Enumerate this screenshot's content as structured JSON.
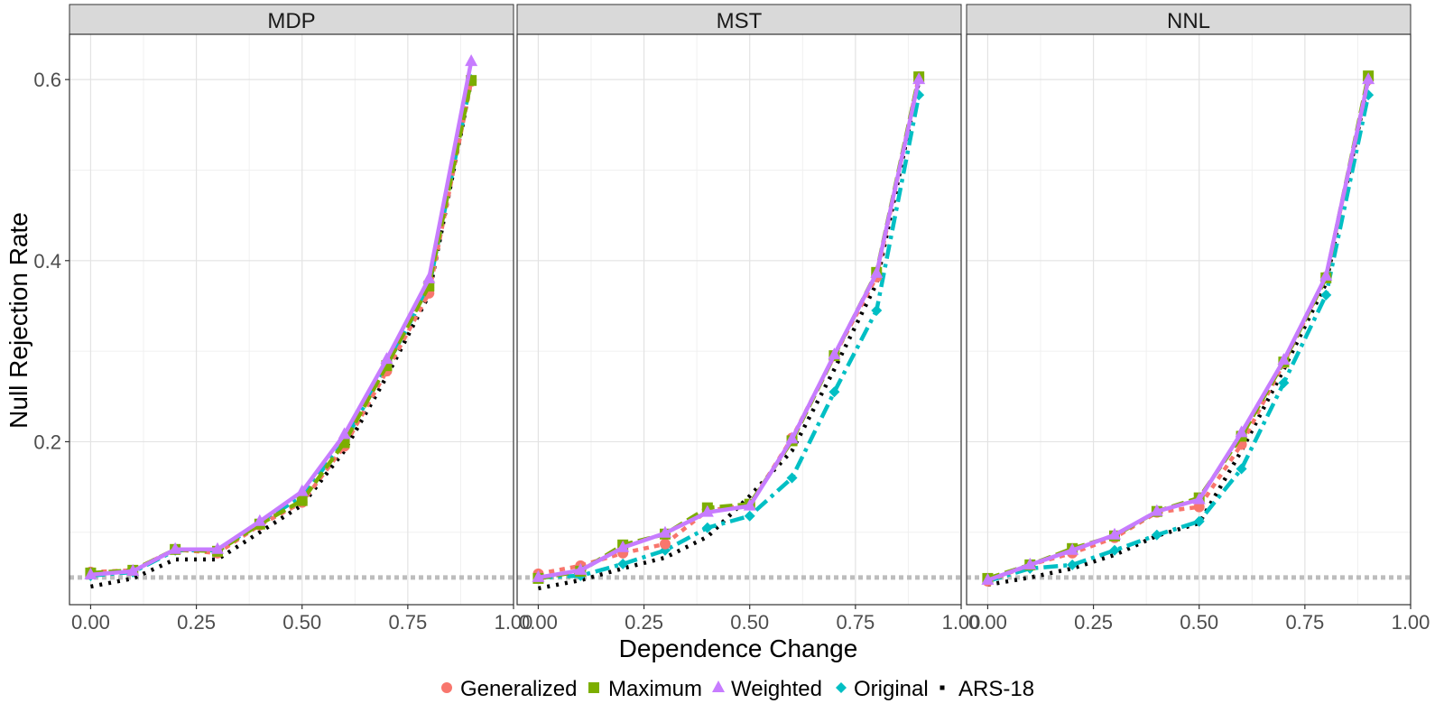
{
  "chart_data": {
    "type": "line",
    "xlabel": "Dependence Change",
    "ylabel": "Null Rejection Rate",
    "xlim": [
      -0.05,
      1.0
    ],
    "ylim": [
      0.02,
      0.65
    ],
    "x_ticks": [
      "0.00",
      "0.25",
      "0.50",
      "0.75",
      "1.00"
    ],
    "x_tick_values": [
      0,
      0.25,
      0.5,
      0.75,
      1.0
    ],
    "y_ticks": [
      "0.2",
      "0.4",
      "0.6"
    ],
    "y_tick_values": [
      0.2,
      0.4,
      0.6
    ],
    "grid": true,
    "legend_position": "bottom",
    "reference_line": {
      "y": 0.05,
      "color": "#bdbdbd",
      "style": "dotted"
    },
    "series_meta": [
      {
        "name": "Generalized",
        "color": "#F8766D",
        "shape": "circle",
        "dash": "6,6"
      },
      {
        "name": "Maximum",
        "color": "#7CAE00",
        "shape": "square",
        "dash": "14,6"
      },
      {
        "name": "Weighted",
        "color": "#C77CFF",
        "shape": "triangle",
        "dash": ""
      },
      {
        "name": "Original",
        "color": "#00BFC4",
        "shape": "diamond",
        "dash": "16,6,4,6"
      },
      {
        "name": "ARS-18",
        "color": "#000000",
        "shape": "dot",
        "dash": "3,7"
      }
    ],
    "panels": [
      {
        "title": "MDP",
        "x": [
          0,
          0.1,
          0.2,
          0.3,
          0.4,
          0.5,
          0.6,
          0.7,
          0.8,
          0.9
        ],
        "series": [
          {
            "name": "Generalized",
            "values": [
              0.056,
              0.058,
              0.081,
              0.077,
              0.108,
              0.133,
              0.195,
              0.278,
              0.364,
              0.598
            ]
          },
          {
            "name": "Maximum",
            "values": [
              0.055,
              0.058,
              0.081,
              0.079,
              0.109,
              0.135,
              0.199,
              0.284,
              0.372,
              0.599
            ]
          },
          {
            "name": "Weighted",
            "values": [
              0.053,
              0.057,
              0.081,
              0.081,
              0.112,
              0.145,
              0.208,
              0.291,
              0.38,
              0.62
            ]
          },
          {
            "name": "Original",
            "values": [
              0.052,
              0.056,
              0.08,
              0.08,
              0.11,
              0.14,
              0.2,
              0.284,
              0.37,
              0.6
            ]
          },
          {
            "name": "ARS-18",
            "values": [
              0.04,
              0.049,
              0.07,
              0.07,
              0.1,
              0.13,
              0.19,
              0.272,
              0.362,
              0.598
            ]
          }
        ]
      },
      {
        "title": "MST",
        "x": [
          0,
          0.1,
          0.2,
          0.3,
          0.4,
          0.5,
          0.6,
          0.7,
          0.8,
          0.9
        ],
        "series": [
          {
            "name": "Generalized",
            "values": [
              0.054,
              0.063,
              0.077,
              0.087,
              0.124,
              0.13,
              0.204,
              0.295,
              0.382,
              0.603
            ]
          },
          {
            "name": "Maximum",
            "values": [
              0.049,
              0.057,
              0.086,
              0.098,
              0.127,
              0.131,
              0.201,
              0.295,
              0.387,
              0.603
            ]
          },
          {
            "name": "Weighted",
            "values": [
              0.05,
              0.058,
              0.083,
              0.099,
              0.122,
              0.129,
              0.203,
              0.296,
              0.386,
              0.6
            ]
          },
          {
            "name": "Original",
            "values": [
              0.05,
              0.052,
              0.065,
              0.08,
              0.105,
              0.118,
              0.16,
              0.255,
              0.345,
              0.583
            ]
          },
          {
            "name": "ARS-18",
            "values": [
              0.038,
              0.047,
              0.06,
              0.072,
              0.095,
              0.14,
              0.19,
              0.28,
              0.375,
              0.598
            ]
          }
        ]
      },
      {
        "title": "NNL",
        "x": [
          0,
          0.1,
          0.2,
          0.3,
          0.4,
          0.5,
          0.6,
          0.7,
          0.8,
          0.9
        ],
        "series": [
          {
            "name": "Generalized",
            "values": [
              0.046,
              0.064,
              0.077,
              0.094,
              0.122,
              0.128,
              0.197,
              0.287,
              0.382,
              0.6
            ]
          },
          {
            "name": "Maximum",
            "values": [
              0.049,
              0.064,
              0.082,
              0.096,
              0.123,
              0.138,
              0.206,
              0.288,
              0.381,
              0.604
            ]
          },
          {
            "name": "Weighted",
            "values": [
              0.047,
              0.064,
              0.08,
              0.097,
              0.123,
              0.136,
              0.21,
              0.29,
              0.383,
              0.6
            ]
          },
          {
            "name": "Original",
            "values": [
              0.046,
              0.06,
              0.064,
              0.08,
              0.097,
              0.112,
              0.17,
              0.265,
              0.362,
              0.583
            ]
          },
          {
            "name": "ARS-18",
            "values": [
              0.042,
              0.05,
              0.06,
              0.075,
              0.096,
              0.11,
              0.19,
              0.28,
              0.375,
              0.598
            ]
          }
        ]
      }
    ]
  }
}
